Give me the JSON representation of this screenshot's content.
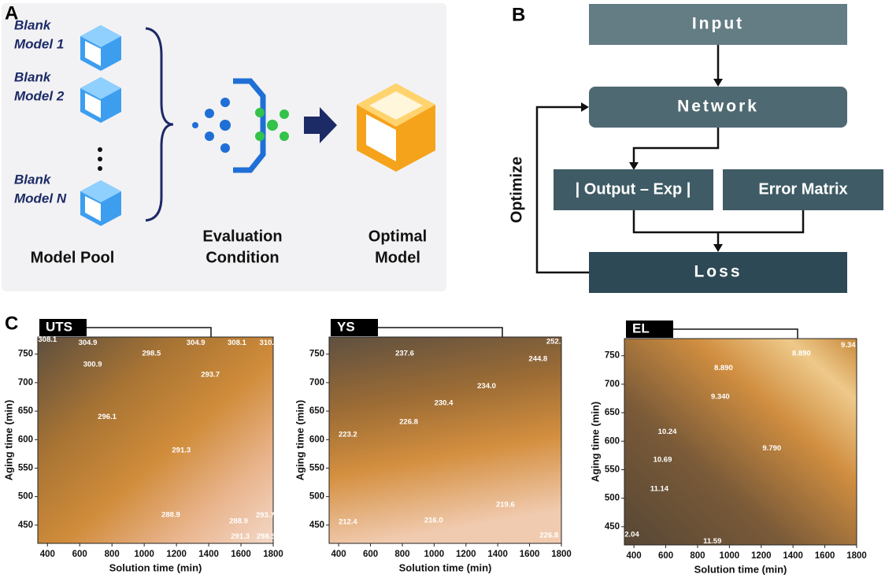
{
  "panel_a": {
    "label": "A",
    "models": [
      [
        "Blank",
        "Model 1"
      ],
      [
        "Blank",
        "Model 2"
      ],
      [
        "Blank",
        "Model N"
      ]
    ],
    "pool_label": "Model Pool",
    "evaluation": [
      "Evaluation",
      "Condition"
    ],
    "optimal": [
      "Optimal",
      "Model"
    ]
  },
  "panel_b": {
    "label": "B",
    "input": "Input",
    "network": "Network",
    "output": "| Output – Exp |",
    "error": "Error Matrix",
    "loss": "Loss",
    "optimize": "Optimize"
  },
  "panel_c": {
    "label": "C",
    "plots": [
      {
        "title": "UTS",
        "xlabel": "Solution time (min)",
        "ylabel": "Aging time (min)",
        "xlim": [
          340,
          1800
        ],
        "xticks": [
          400,
          600,
          800,
          1000,
          1200,
          1400,
          1600,
          1800
        ],
        "ylim": [
          418,
          780
        ],
        "yticks": [
          450,
          500,
          550,
          600,
          650,
          700,
          750
        ],
        "contour_labels": [
          {
            "text": "308.1",
            "x": 400,
            "y": 775
          },
          {
            "text": "304.9",
            "x": 650,
            "y": 770
          },
          {
            "text": "304.9",
            "x": 1320,
            "y": 770
          },
          {
            "text": "308.1",
            "x": 1575,
            "y": 770
          },
          {
            "text": "310.",
            "x": 1760,
            "y": 770
          },
          {
            "text": "300.9",
            "x": 680,
            "y": 732
          },
          {
            "text": "298.5",
            "x": 1045,
            "y": 751
          },
          {
            "text": "293.7",
            "x": 1410,
            "y": 714
          },
          {
            "text": "296.1",
            "x": 770,
            "y": 640
          },
          {
            "text": "291.3",
            "x": 1230,
            "y": 581
          },
          {
            "text": "288.9",
            "x": 1165,
            "y": 468
          },
          {
            "text": "288.9",
            "x": 1585,
            "y": 457
          },
          {
            "text": "291.3",
            "x": 1595,
            "y": 430
          },
          {
            "text": "293.7",
            "x": 1750,
            "y": 467
          },
          {
            "text": "298.5",
            "x": 1755,
            "y": 430
          }
        ]
      },
      {
        "title": "YS",
        "xlabel": "Solution time (min)",
        "ylabel": "Aging time (min)",
        "xlim": [
          340,
          1800
        ],
        "xticks": [
          400,
          600,
          800,
          1000,
          1200,
          1400,
          1600,
          1800
        ],
        "ylim": [
          418,
          780
        ],
        "yticks": [
          450,
          500,
          550,
          600,
          650,
          700,
          750
        ],
        "contour_labels": [
          {
            "text": "237.6",
            "x": 815,
            "y": 751
          },
          {
            "text": "252.",
            "x": 1751,
            "y": 772
          },
          {
            "text": "244.8",
            "x": 1653,
            "y": 741
          },
          {
            "text": "234.0",
            "x": 1330,
            "y": 694
          },
          {
            "text": "230.4",
            "x": 1060,
            "y": 664
          },
          {
            "text": "226.8",
            "x": 840,
            "y": 631
          },
          {
            "text": "223.2",
            "x": 458,
            "y": 609
          },
          {
            "text": "219.6",
            "x": 1448,
            "y": 486
          },
          {
            "text": "216.0",
            "x": 997,
            "y": 458
          },
          {
            "text": "212.4",
            "x": 458,
            "y": 455
          },
          {
            "text": "226.8",
            "x": 1722,
            "y": 432
          }
        ]
      },
      {
        "title": "EL",
        "xlabel": "Solution time (min)",
        "ylabel": "Aging time (min)",
        "xlim": [
          340,
          1800
        ],
        "xticks": [
          400,
          600,
          800,
          1000,
          1200,
          1400,
          1600,
          1800
        ],
        "ylim": [
          418,
          780
        ],
        "yticks": [
          450,
          500,
          550,
          600,
          650,
          700,
          750
        ],
        "contour_labels": [
          {
            "text": "9.34",
            "x": 1747,
            "y": 768
          },
          {
            "text": "8.890",
            "x": 1453,
            "y": 754
          },
          {
            "text": "8.890",
            "x": 963,
            "y": 728
          },
          {
            "text": "9.340",
            "x": 943,
            "y": 678
          },
          {
            "text": "10.24",
            "x": 610,
            "y": 616
          },
          {
            "text": "10.69",
            "x": 580,
            "y": 567
          },
          {
            "text": "9.790",
            "x": 1267,
            "y": 587
          },
          {
            "text": "11.14",
            "x": 560,
            "y": 516
          },
          {
            "text": "11.59",
            "x": 893,
            "y": 424
          },
          {
            "text": "2.04",
            "x": 387,
            "y": 436
          }
        ]
      }
    ]
  }
}
